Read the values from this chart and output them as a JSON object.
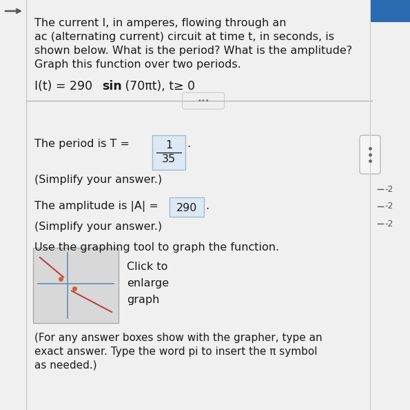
{
  "bg_color": "#f0f0f0",
  "panel_color": "#f5f5f5",
  "title_lines": [
    "The current I, in amperes, flowing through an",
    "ac (alternating current) circuit at time t, in seconds, is",
    "shown below. What is the period? What is the amplitude?",
    "Graph this function over two periods."
  ],
  "formula_pre": "I(t) = 290 ",
  "formula_sin": "sin",
  "formula_post": " (70πt), t≥ 0",
  "period_label": "The period is T = ",
  "period_num": "1",
  "period_den": "35",
  "period_suffix": ".",
  "simplify1": "(Simplify your answer.)",
  "amplitude_label": "The amplitude is |A| = ",
  "amplitude_value": "290",
  "amplitude_suffix": ".",
  "simplify2": "(Simplify your answer.)",
  "use_graphing": "Use the graphing tool to graph the function.",
  "click_to": "Click to",
  "enlarge": "enlarge",
  "graph_word": "graph",
  "footer_lines": [
    "(For any answer boxes show with the grapher, type an",
    "exact answer. Type the word pi to insert the π symbol",
    "as needed.)"
  ],
  "text_color": "#1a1a1a",
  "answer_box_bg": "#dce8f4",
  "answer_box_border": "#a0bcd0",
  "thumb_bg": "#d8d8d8",
  "thumb_border": "#aaaaaa",
  "thumb_axis_color": "#6090b8",
  "thumb_curve_color": "#c04040",
  "thumb_dot_color": "#d06030",
  "left_border_color": "#cccccc",
  "right_line_color": "#cccccc",
  "divider_color": "#aaaaaa",
  "scrollbar_border": "#aaaaaa",
  "scrollbar_bg": "#f5f5f5",
  "scrollbar_dot_color": "#666666",
  "right_tick_color": "#555555",
  "top_right_bg": "#2a6ab0",
  "back_arrow_color": "#555555",
  "btn_dots_color": "#777777",
  "btn_bg": "#efefef",
  "btn_border": "#cccccc"
}
